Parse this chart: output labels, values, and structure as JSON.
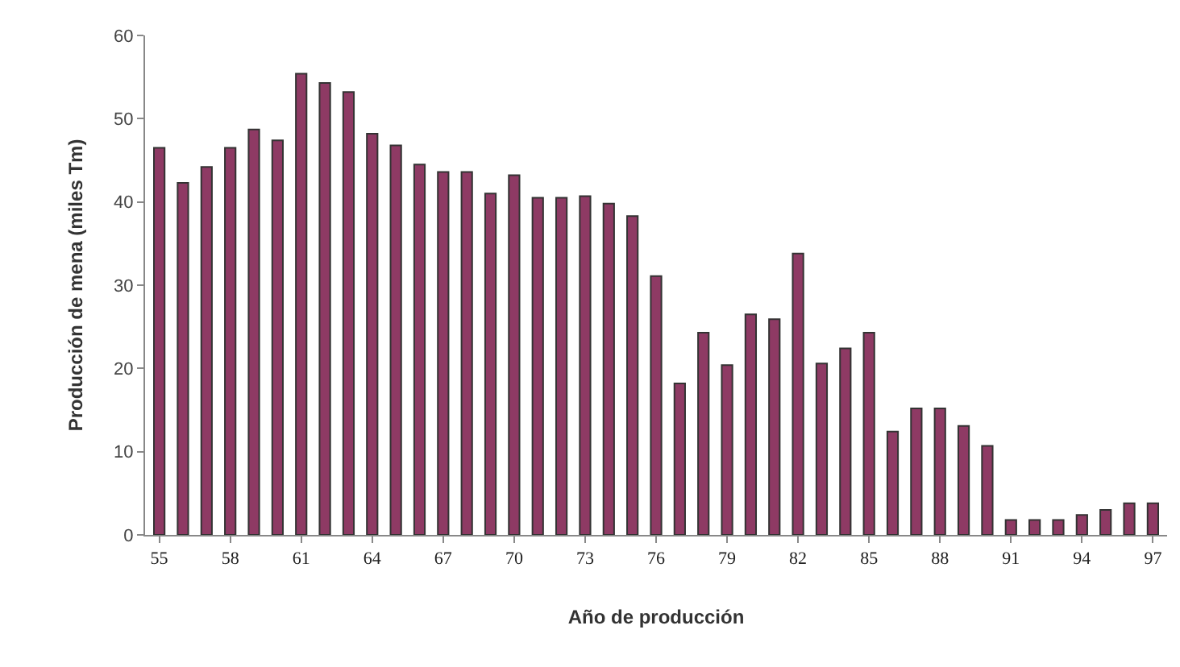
{
  "chart_data": {
    "type": "bar",
    "xlabel": "Año de producción",
    "ylabel": "Producción de mena (miles Tm)",
    "categories": [
      "55",
      null,
      null,
      "58",
      null,
      null,
      "61",
      null,
      null,
      "64",
      null,
      null,
      "67",
      null,
      null,
      "70",
      null,
      null,
      "73",
      null,
      null,
      "76",
      null,
      null,
      "79",
      null,
      null,
      "82",
      null,
      null,
      "85",
      null,
      null,
      "88",
      null,
      null,
      "91",
      null,
      null,
      "94",
      null,
      null,
      "97"
    ],
    "values": [
      46.5,
      42.3,
      44.2,
      46.5,
      48.7,
      47.4,
      55.4,
      54.3,
      53.2,
      48.2,
      46.8,
      44.5,
      43.6,
      43.6,
      41.0,
      43.2,
      40.5,
      40.5,
      40.7,
      39.8,
      38.3,
      31.1,
      18.2,
      24.3,
      20.4,
      26.5,
      25.9,
      33.8,
      20.6,
      22.4,
      24.3,
      12.4,
      15.2,
      15.2,
      13.1,
      10.7,
      1.8,
      1.8,
      1.8,
      2.4,
      3.0,
      3.8,
      3.8
    ],
    "color": "#8e3a64",
    "ylim": [
      0,
      60
    ],
    "yticks": [
      0,
      10,
      20,
      30,
      40,
      50,
      60
    ],
    "grid": false
  }
}
